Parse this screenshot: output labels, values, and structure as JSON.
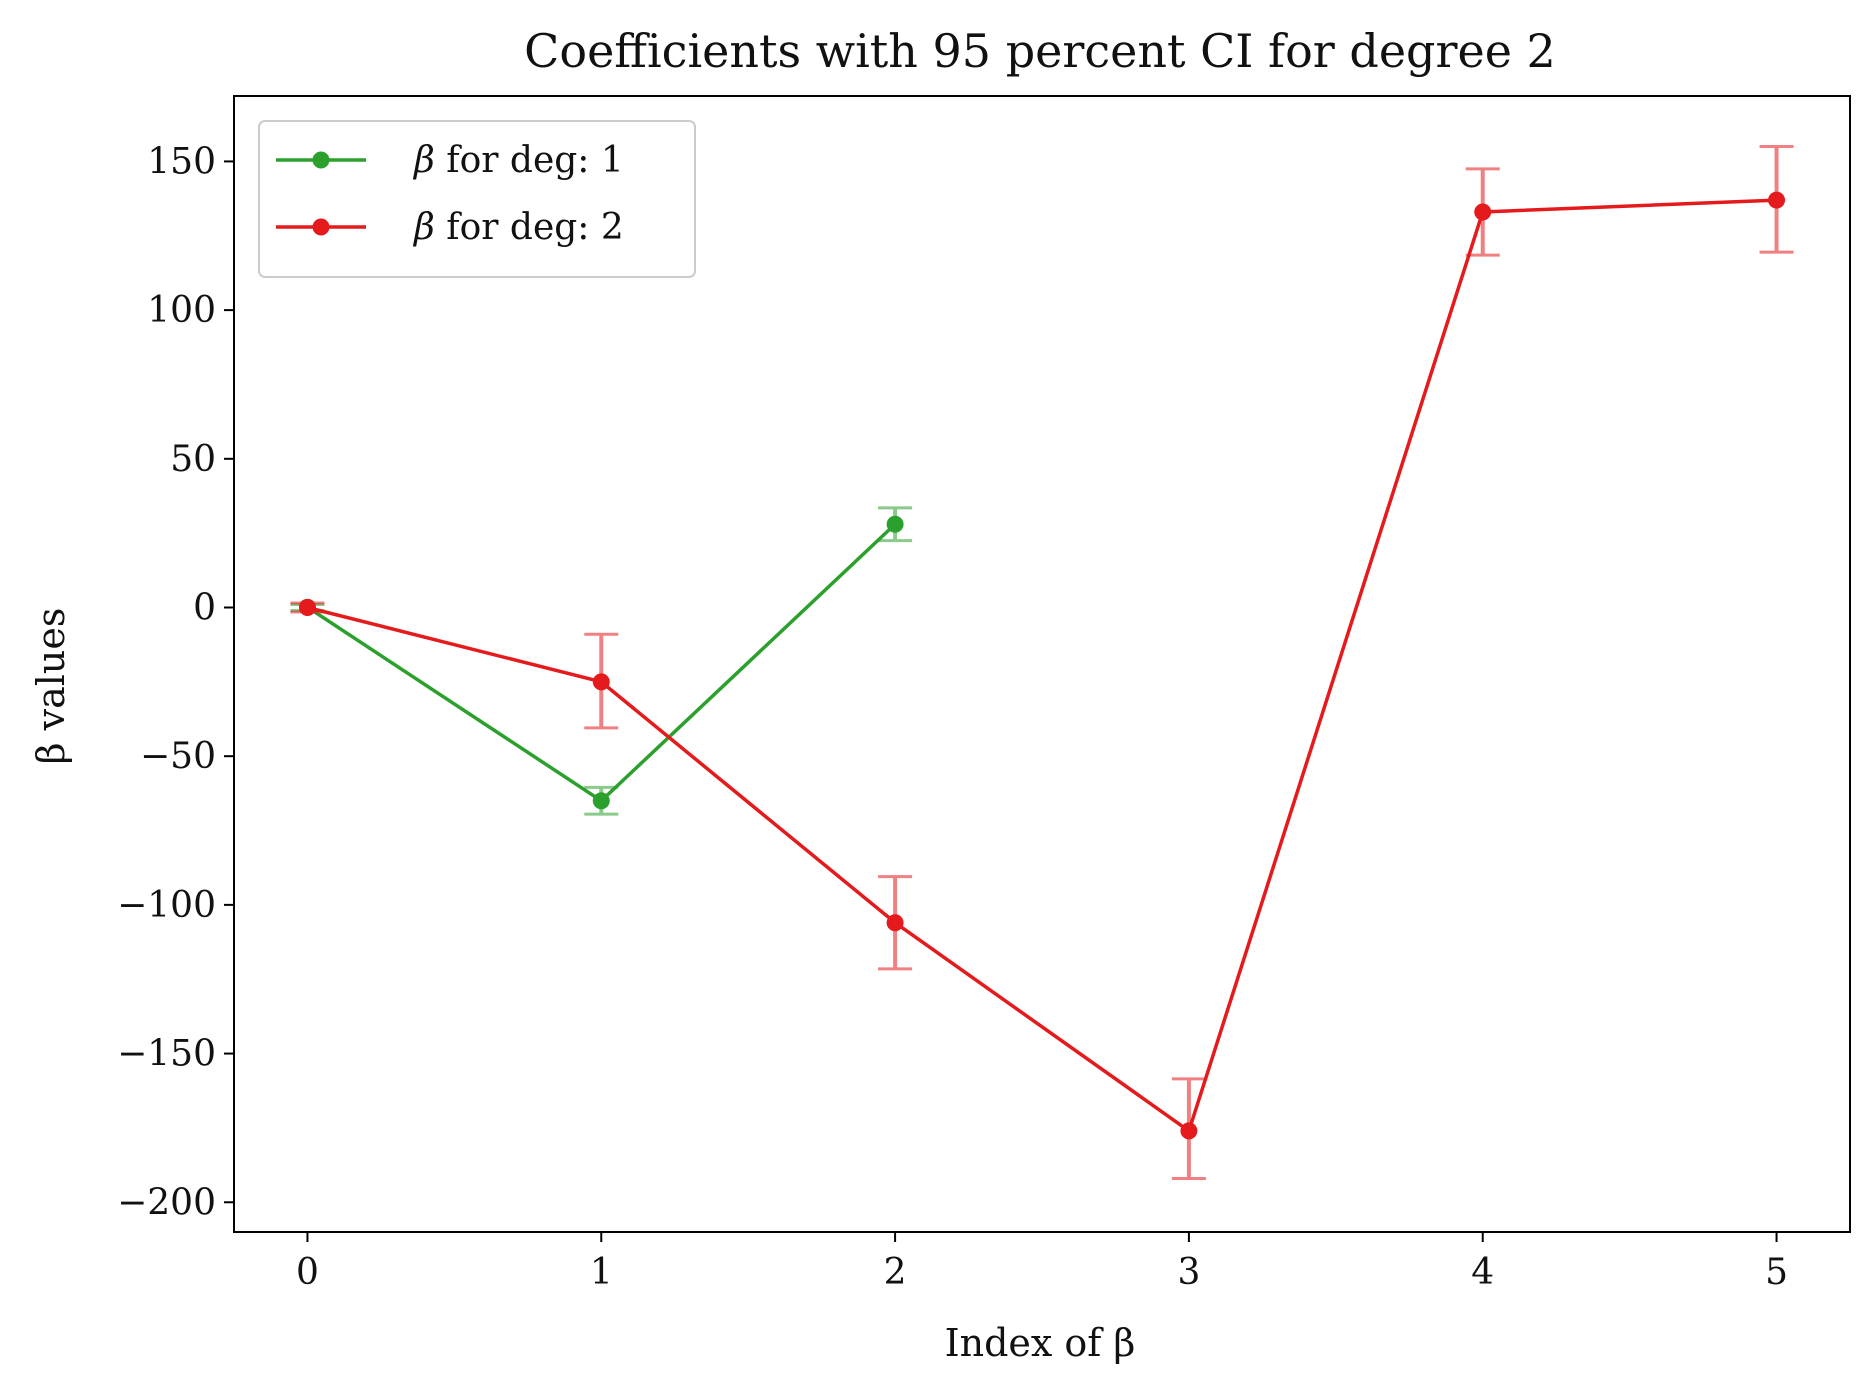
{
  "chart_data": {
    "type": "line",
    "title": "Coefficients with 95 percent CI for degree 2",
    "xlabel": "Index of β",
    "ylabel": "β values",
    "xlim": [
      -0.25,
      5.25
    ],
    "ylim": [
      -210,
      172
    ],
    "x_ticks": [
      0,
      1,
      2,
      3,
      4,
      5
    ],
    "x_tick_labels": [
      "0",
      "1",
      "2",
      "3",
      "4",
      "5"
    ],
    "y_ticks": [
      -200,
      -150,
      -100,
      -50,
      0,
      50,
      100,
      150
    ],
    "y_tick_labels": [
      "−200",
      "−150",
      "−100",
      "−50",
      "0",
      "50",
      "100",
      "150"
    ],
    "grid": false,
    "legend_position": "upper-left",
    "series": [
      {
        "name": "β for deg: 1",
        "legend_prefix": "β",
        "legend_suffix": " for deg: 1",
        "color": "#2ca02c",
        "x": [
          0,
          1,
          2
        ],
        "values": [
          0.1,
          -65,
          28
        ],
        "ci_low": [
          -1.0,
          -69.5,
          22.5
        ],
        "ci_high": [
          1.0,
          -60.5,
          33.5
        ]
      },
      {
        "name": "β for deg: 2",
        "legend_prefix": "β",
        "legend_suffix": " for deg: 2",
        "color": "#e41a1c",
        "x": [
          0,
          1,
          2,
          3,
          4,
          5
        ],
        "values": [
          0,
          -25,
          -106,
          -176,
          133,
          137
        ],
        "ci_low": [
          -1.5,
          -40.5,
          -121.5,
          -192,
          118.5,
          119.5
        ],
        "ci_high": [
          1.5,
          -9,
          -90.5,
          -158.5,
          147.5,
          155
        ]
      }
    ]
  }
}
